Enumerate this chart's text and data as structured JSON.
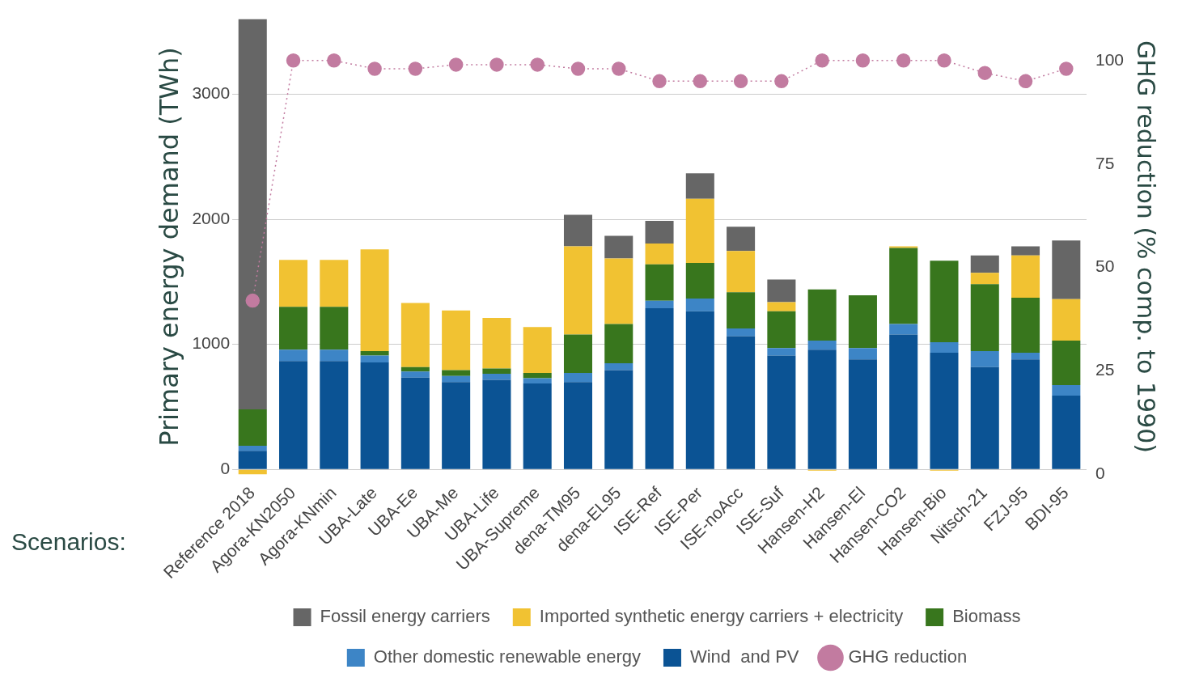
{
  "chart_data": {
    "type": "bar",
    "stacked": true,
    "xlabel": "Scenarios:",
    "ylabel": "Primary energy demand (TWh)",
    "y2label": "GHG reduction (% comp. to 1990)",
    "categories": [
      "Reference 2018",
      "Agora-KN2050",
      "Agora-KNmin",
      "UBA-Late",
      "UBA-Ee",
      "UBA-Me",
      "UBA-Life",
      "UBA-Supreme",
      "dena-TM95",
      "dena-EL95",
      "ISE-Ref",
      "ISE-Per",
      "ISE-noAcc",
      "ISE-Suf",
      "Hansen-H2",
      "Hansen-El",
      "Hansen-CO2",
      "Hansen-Bio",
      "Nitsch-21",
      "FZJ-95",
      "BDI-95"
    ],
    "ylim": [
      -40,
      3600
    ],
    "yticks": [
      0,
      1000,
      2000,
      3000
    ],
    "y2lim": [
      0,
      110
    ],
    "y2ticks": [
      0,
      25,
      50,
      75,
      100
    ],
    "grid": "y",
    "legend": "bottom",
    "series": [
      {
        "name": "Wind  and PV",
        "color": "#0b5394",
        "values": [
          150,
          867,
          867,
          855,
          735,
          699,
          717,
          687,
          699,
          795,
          1289,
          1265,
          1066,
          910,
          958,
          880,
          1078,
          934,
          819,
          880,
          590
        ]
      },
      {
        "name": "Other domestic renewable energy",
        "color": "#3d85c6",
        "values": [
          40,
          91,
          91,
          55,
          48,
          48,
          48,
          42,
          72,
          54,
          60,
          102,
          61,
          60,
          72,
          90,
          85,
          84,
          127,
          54,
          85
        ]
      },
      {
        "name": "Biomass",
        "color": "#38761d",
        "values": [
          290,
          343,
          343,
          36,
          36,
          48,
          42,
          42,
          307,
          314,
          290,
          284,
          289,
          295,
          410,
          422,
          608,
          651,
          536,
          439,
          355
        ]
      },
      {
        "name": "Imported synthetic energy carriers + electricity",
        "color": "#f1c232",
        "values": [
          -40,
          374,
          374,
          813,
          512,
          476,
          404,
          368,
          705,
          524,
          168,
          512,
          331,
          72,
          -10,
          0,
          12,
          -10,
          90,
          338,
          331
        ]
      },
      {
        "name": "Fossil energy carriers",
        "color": "#666666",
        "values": [
          3120,
          0,
          0,
          0,
          0,
          0,
          0,
          0,
          253,
          180,
          181,
          204,
          193,
          181,
          0,
          0,
          0,
          0,
          139,
          72,
          470
        ]
      },
      {
        "name": "GHG reduction",
        "type": "line",
        "axis": "y2",
        "color": "#c27ba0",
        "marker": "circle",
        "line_style": "dotted",
        "values": [
          42,
          100,
          100,
          98,
          98,
          99,
          99,
          99,
          98,
          98,
          95,
          95,
          95,
          95,
          100,
          100,
          100,
          100,
          97,
          95,
          98
        ]
      }
    ]
  }
}
